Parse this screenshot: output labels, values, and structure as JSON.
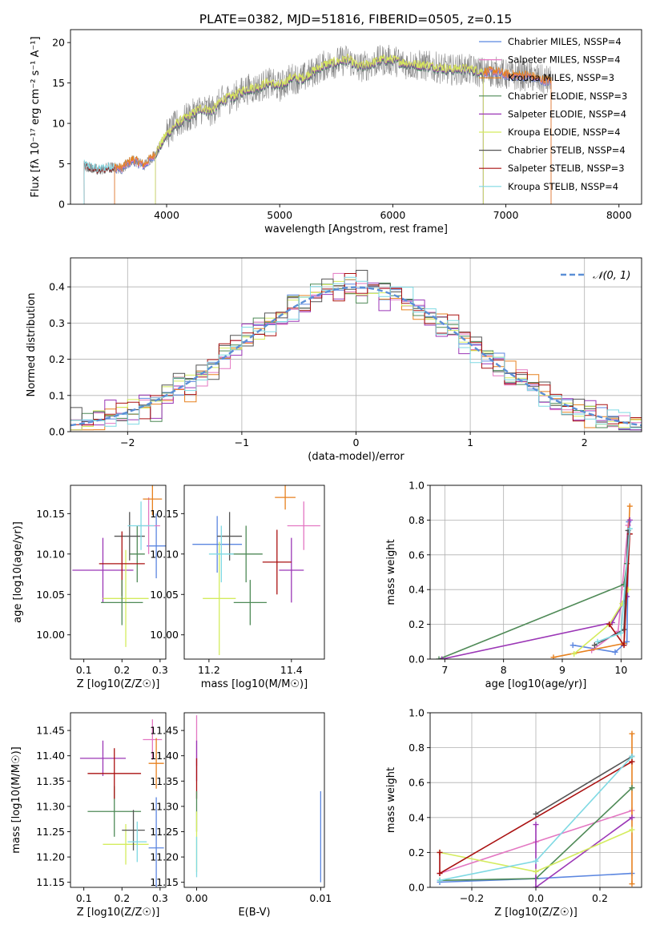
{
  "figure": {
    "title": "PLATE=0382, MJD=51816, FIBERID=0505, z=0.15"
  },
  "series_styles": [
    {
      "name": "Chabrier MILES",
      "nssp": "4",
      "color": "#5b86e0"
    },
    {
      "name": "Salpeter MILES",
      "nssp": "4",
      "color": "#e377c2"
    },
    {
      "name": "Kroupa MILES",
      "nssp": "3",
      "color": "#e7811f"
    },
    {
      "name": "Chabrier ELODIE",
      "nssp": "3",
      "color": "#4f8a57"
    },
    {
      "name": "Salpeter ELODIE",
      "nssp": "4",
      "color": "#9b36b6"
    },
    {
      "name": "Kroupa ELODIE",
      "nssp": "4",
      "color": "#d4ec5e"
    },
    {
      "name": "Chabrier STELIB",
      "nssp": "4",
      "color": "#555555"
    },
    {
      "name": "Salpeter STELIB",
      "nssp": "3",
      "color": "#aa1111"
    },
    {
      "name": "Kroupa STELIB",
      "nssp": "4",
      "color": "#7fd9e3"
    }
  ],
  "chart_data": [
    {
      "id": "spectrum",
      "type": "line",
      "title": "PLATE=0382, MJD=51816, FIBERID=0505, z=0.15",
      "xlabel": "wavelength [Angstrom, rest frame]",
      "ylabel": "Flux [fλ 10⁻¹⁷ erg cm⁻² s⁻¹ A⁻¹]",
      "xlim": [
        3150,
        8200
      ],
      "ylim": [
        0,
        21.6
      ],
      "xticks": [
        4000,
        5000,
        6000,
        7000,
        8000
      ],
      "yticks": [
        0,
        5,
        10,
        15,
        20
      ],
      "legend_loc": "upper right",
      "legend": [
        "Chabrier MILES, NSSP=4",
        "Salpeter MILES, NSSP=4",
        "Kroupa MILES, NSSP=3",
        "Chabrier ELODIE, NSSP=3",
        "Salpeter ELODIE, NSSP=4",
        "Kroupa ELODIE, NSSP=4",
        "Chabrier STELIB, NSSP=4",
        "Salpeter STELIB, NSSP=3",
        "Kroupa STELIB, NSSP=4"
      ],
      "continuum_x": [
        3270,
        3400,
        3500,
        3600,
        3700,
        3800,
        3900,
        4000,
        4100,
        4200,
        4300,
        4400,
        4500,
        4600,
        4700,
        4800,
        4900,
        5000,
        5100,
        5200,
        5300,
        5400,
        5500,
        5600,
        5700,
        5800,
        5900,
        6000,
        6100,
        6200,
        6300,
        6400,
        6500,
        6600,
        6700,
        6800,
        6900,
        7000,
        7100,
        7200,
        7300,
        7400
      ],
      "continuum_y": [
        4.8,
        4.2,
        4.6,
        4.4,
        5.5,
        4.8,
        6.2,
        8.6,
        10.0,
        10.8,
        11.8,
        11.5,
        12.9,
        13.3,
        14.2,
        14.4,
        15.0,
        14.5,
        15.6,
        15.5,
        16.4,
        17.2,
        17.5,
        17.9,
        16.9,
        17.3,
        17.8,
        17.8,
        17.4,
        17.2,
        17.1,
        16.9,
        16.6,
        16.7,
        16.6,
        16.3,
        16.4,
        16.0,
        15.9,
        15.9,
        15.4,
        15.2
      ],
      "noisy_data_xrange": [
        4000,
        7400
      ],
      "model_ranges": [
        {
          "series": "Chabrier MILES",
          "x": [
            3540,
            7400
          ]
        },
        {
          "series": "Salpeter MILES",
          "x": [
            3540,
            7400
          ]
        },
        {
          "series": "Kroupa MILES",
          "x": [
            3540,
            7400
          ]
        },
        {
          "series": "Chabrier ELODIE",
          "x": [
            3900,
            6800
          ]
        },
        {
          "series": "Salpeter ELODIE",
          "x": [
            3900,
            6800
          ]
        },
        {
          "series": "Kroupa ELODIE",
          "x": [
            3900,
            6800
          ]
        },
        {
          "series": "Chabrier STELIB",
          "x": [
            3270,
            7400
          ]
        },
        {
          "series": "Salpeter STELIB",
          "x": [
            3270,
            7400
          ]
        },
        {
          "series": "Kroupa STELIB",
          "x": [
            3270,
            7400
          ]
        }
      ]
    },
    {
      "id": "residuals",
      "type": "step-histogram",
      "xlabel": "(data-model)/error",
      "ylabel": "Normed distribution",
      "xlim": [
        -2.5,
        2.5
      ],
      "ylim": [
        0,
        0.48
      ],
      "xticks": [
        -2,
        -1,
        0,
        1,
        2
      ],
      "yticks": [
        0.0,
        0.1,
        0.2,
        0.3,
        0.4
      ],
      "grid": true,
      "legend_loc": "upper right",
      "reference_curve": {
        "label": "𝒩(0, 1)",
        "mean": 0,
        "sigma": 1,
        "style": "dashed",
        "color": "#5b8fd6"
      },
      "bin_width": 0.1,
      "bin_range": [
        -2.5,
        2.5
      ]
    },
    {
      "id": "age-vs-Z",
      "type": "scatter-errorbar",
      "xlabel": "Z [log10(Z/Z☉)]",
      "ylabel": "age  [log10(age/yr)]",
      "xlim": [
        0.065,
        0.315
      ],
      "ylim": [
        9.97,
        10.185
      ],
      "xticks": [
        0.1,
        0.2,
        0.3
      ],
      "yticks": [
        10.0,
        10.05,
        10.1,
        10.15
      ],
      "points": [
        {
          "series": "Chabrier MILES",
          "x": 0.29,
          "y": 10.11,
          "xerr": 0.025,
          "yerr": 0.04
        },
        {
          "series": "Salpeter MILES",
          "x": 0.27,
          "y": 10.135,
          "xerr": 0.03,
          "yerr": 0.035
        },
        {
          "series": "Kroupa MILES",
          "x": 0.28,
          "y": 10.168,
          "xerr": 0.025,
          "yerr": 0.02
        },
        {
          "series": "Chabrier ELODIE",
          "x": 0.24,
          "y": 10.1,
          "xerr": 0.02,
          "yerr": 0.035
        },
        {
          "series": "Salpeter ELODIE",
          "x": 0.15,
          "y": 10.08,
          "xerr": 0.08,
          "yerr": 0.04
        },
        {
          "series": "Kroupa ELODIE",
          "x": 0.21,
          "y": 10.045,
          "xerr": 0.06,
          "yerr": 0.06
        },
        {
          "series": "Chabrier STELIB",
          "x": 0.22,
          "y": 10.122,
          "xerr": 0.04,
          "yerr": 0.03
        },
        {
          "series": "Salpeter STELIB",
          "x": 0.2,
          "y": 10.088,
          "xerr": 0.06,
          "yerr": 0.04
        },
        {
          "series": "Kroupa STELIB",
          "x": 0.25,
          "y": 10.135,
          "xerr": 0.035,
          "yerr": 0.03
        },
        {
          "series": "Chabrier ELODIE",
          "x": 0.2,
          "y": 10.04,
          "xerr": 0.055,
          "yerr": 0.028
        }
      ]
    },
    {
      "id": "age-vs-mass",
      "type": "scatter-errorbar",
      "xlabel": "mass [log10(M/M☉)]",
      "ylabel": "",
      "xlim": [
        11.14,
        11.48
      ],
      "ylim": [
        9.97,
        10.185
      ],
      "xticks": [
        11.2,
        11.4
      ],
      "yticks": [
        10.0,
        10.05,
        10.1,
        10.15
      ],
      "points": [
        {
          "series": "Chabrier MILES",
          "x": 11.22,
          "y": 10.112,
          "xerr": 0.06,
          "yerr": 0.035
        },
        {
          "series": "Salpeter MILES",
          "x": 11.43,
          "y": 10.135,
          "xerr": 0.04,
          "yerr": 0.03
        },
        {
          "series": "Kroupa MILES",
          "x": 11.385,
          "y": 10.17,
          "xerr": 0.025,
          "yerr": 0.015
        },
        {
          "series": "Chabrier ELODIE",
          "x": 11.29,
          "y": 10.1,
          "xerr": 0.04,
          "yerr": 0.035
        },
        {
          "series": "Salpeter ELODIE",
          "x": 11.4,
          "y": 10.08,
          "xerr": 0.03,
          "yerr": 0.04
        },
        {
          "series": "Kroupa ELODIE",
          "x": 11.225,
          "y": 10.045,
          "xerr": 0.04,
          "yerr": 0.07
        },
        {
          "series": "Chabrier STELIB",
          "x": 11.25,
          "y": 10.122,
          "xerr": 0.03,
          "yerr": 0.03
        },
        {
          "series": "Salpeter STELIB",
          "x": 11.365,
          "y": 10.09,
          "xerr": 0.035,
          "yerr": 0.04
        },
        {
          "series": "Kroupa STELIB",
          "x": 11.23,
          "y": 10.1,
          "xerr": 0.03,
          "yerr": 0.035
        },
        {
          "series": "Chabrier ELODIE",
          "x": 11.3,
          "y": 10.04,
          "xerr": 0.04,
          "yerr": 0.028
        }
      ]
    },
    {
      "id": "massweight-vs-age",
      "type": "line",
      "xlabel": "age  [log10(age/yr)]",
      "ylabel": "mass weight",
      "xlim": [
        6.75,
        10.35
      ],
      "ylim": [
        0,
        1.0
      ],
      "xticks": [
        7,
        8,
        9,
        10
      ],
      "yticks": [
        0.0,
        0.2,
        0.4,
        0.6,
        0.8,
        1.0
      ],
      "grid": true,
      "series": [
        {
          "name": "Chabrier MILES",
          "x": [
            9.18,
            9.9,
            10.1,
            10.13
          ],
          "y": [
            0.08,
            0.04,
            0.1,
            0.79
          ]
        },
        {
          "name": "Salpeter MILES",
          "x": [
            9.5,
            9.95,
            10.12
          ],
          "y": [
            0.05,
            0.16,
            0.77
          ]
        },
        {
          "name": "Kroupa MILES",
          "x": [
            8.85,
            10.05,
            10.15
          ],
          "y": [
            0.01,
            0.09,
            0.88
          ]
        },
        {
          "name": "Chabrier ELODIE",
          "x": [
            6.9,
            10.05,
            10.1
          ],
          "y": [
            0.0,
            0.43,
            0.55
          ]
        },
        {
          "name": "Salpeter ELODIE",
          "x": [
            6.95,
            9.85,
            10.1,
            10.15
          ],
          "y": [
            0.0,
            0.21,
            0.36,
            0.8
          ]
        },
        {
          "name": "Kroupa ELODIE",
          "x": [
            9.2,
            9.8,
            10.02,
            10.12
          ],
          "y": [
            0.03,
            0.2,
            0.32,
            0.4
          ]
        },
        {
          "name": "Chabrier STELIB",
          "x": [
            9.55,
            10.05,
            10.12
          ],
          "y": [
            0.08,
            0.17,
            0.74
          ]
        },
        {
          "name": "Salpeter STELIB",
          "x": [
            9.8,
            10.05,
            10.15
          ],
          "y": [
            0.2,
            0.08,
            0.72
          ]
        },
        {
          "name": "Kroupa STELIB",
          "x": [
            9.6,
            10.0,
            10.15
          ],
          "y": [
            0.1,
            0.15,
            0.75
          ]
        }
      ]
    },
    {
      "id": "mass-vs-Z",
      "type": "scatter-errorbar",
      "xlabel": "Z [log10(Z/Z☉)]",
      "ylabel": "mass [log10(M/M☉)]",
      "xlim": [
        0.065,
        0.315
      ],
      "ylim": [
        11.14,
        11.485
      ],
      "xticks": [
        0.1,
        0.2,
        0.3
      ],
      "yticks": [
        11.15,
        11.2,
        11.25,
        11.3,
        11.35,
        11.4,
        11.45
      ],
      "points": [
        {
          "series": "Chabrier MILES",
          "x": 0.29,
          "y": 11.218,
          "xerr": 0.02,
          "yerr": 0.1
        },
        {
          "series": "Salpeter MILES",
          "x": 0.28,
          "y": 11.432,
          "xerr": 0.025,
          "yerr": 0.04
        },
        {
          "series": "Kroupa MILES",
          "x": 0.29,
          "y": 11.385,
          "xerr": 0.02,
          "yerr": 0.05
        },
        {
          "series": "Chabrier ELODIE",
          "x": 0.18,
          "y": 11.29,
          "xerr": 0.07,
          "yerr": 0.05
        },
        {
          "series": "Salpeter ELODIE",
          "x": 0.15,
          "y": 11.395,
          "xerr": 0.06,
          "yerr": 0.035
        },
        {
          "series": "Kroupa ELODIE",
          "x": 0.21,
          "y": 11.225,
          "xerr": 0.06,
          "yerr": 0.04
        },
        {
          "series": "Chabrier STELIB",
          "x": 0.23,
          "y": 11.253,
          "xerr": 0.03,
          "yerr": 0.04
        },
        {
          "series": "Salpeter STELIB",
          "x": 0.18,
          "y": 11.365,
          "xerr": 0.07,
          "yerr": 0.05
        },
        {
          "series": "Kroupa STELIB",
          "x": 0.24,
          "y": 11.23,
          "xerr": 0.025,
          "yerr": 0.04
        }
      ]
    },
    {
      "id": "mass-vs-EBV",
      "type": "scatter-errorbar",
      "xlabel": "E(B-V)",
      "ylabel": "",
      "xlim": [
        -0.001,
        0.0103
      ],
      "ylim": [
        11.14,
        11.485
      ],
      "xticks": [
        0.0,
        0.01
      ],
      "xtick_labels": [
        "0.00",
        "0.01"
      ],
      "yticks": [
        11.15,
        11.2,
        11.25,
        11.3,
        11.35,
        11.4,
        11.45
      ],
      "points": [
        {
          "series": "Salpeter MILES",
          "x": 0.0,
          "y": 11.43,
          "xerr": 0.0,
          "yerr": 0.05
        },
        {
          "series": "Salpeter ELODIE",
          "x": 0.0,
          "y": 11.39,
          "xerr": 0.0,
          "yerr": 0.04
        },
        {
          "series": "Salpeter STELIB",
          "x": 0.0,
          "y": 11.355,
          "xerr": 0.0,
          "yerr": 0.04
        },
        {
          "series": "Chabrier ELODIE",
          "x": 0.0,
          "y": 11.29,
          "xerr": 0.0,
          "yerr": 0.04
        },
        {
          "series": "Kroupa ELODIE",
          "x": 0.0,
          "y": 11.23,
          "xerr": 0.0,
          "yerr": 0.06
        },
        {
          "series": "Kroupa STELIB",
          "x": 0.0,
          "y": 11.2,
          "xerr": 0.0,
          "yerr": 0.04
        },
        {
          "series": "Chabrier MILES",
          "x": 0.01,
          "y": 11.24,
          "xerr": 0.0,
          "yerr": 0.09
        }
      ]
    },
    {
      "id": "massweight-vs-Z",
      "type": "line",
      "xlabel": "Z [log10(Z/Z☉)]",
      "ylabel": "mass weight",
      "xlim": [
        -0.33,
        0.33
      ],
      "ylim": [
        0,
        1.0
      ],
      "xticks": [
        -0.2,
        0.0,
        0.2
      ],
      "yticks": [
        0.0,
        0.2,
        0.4,
        0.6,
        0.8,
        1.0
      ],
      "grid": true,
      "series": [
        {
          "name": "Chabrier MILES",
          "x": [
            -0.3,
            0.0,
            0.3
          ],
          "y": [
            0.03,
            0.05,
            0.08
          ]
        },
        {
          "name": "Salpeter MILES",
          "x": [
            -0.3,
            0.0,
            0.3
          ],
          "y": [
            0.08,
            0.26,
            0.44
          ]
        },
        {
          "name": "Kroupa MILES",
          "x": [
            0.3,
            0.3
          ],
          "y": [
            0.02,
            0.88
          ]
        },
        {
          "name": "Chabrier ELODIE",
          "x": [
            -0.3,
            0.0,
            0.3
          ],
          "y": [
            0.04,
            0.05,
            0.57
          ]
        },
        {
          "name": "Salpeter ELODIE",
          "x": [
            0.0,
            0.0,
            0.3
          ],
          "y": [
            0.36,
            0.0,
            0.4
          ]
        },
        {
          "name": "Kroupa ELODIE",
          "x": [
            -0.3,
            0.0,
            0.3
          ],
          "y": [
            0.2,
            0.09,
            0.33
          ]
        },
        {
          "name": "Chabrier STELIB",
          "x": [
            0.0,
            0.3
          ],
          "y": [
            0.42,
            0.75
          ]
        },
        {
          "name": "Salpeter STELIB",
          "x": [
            -0.3,
            -0.3,
            0.3
          ],
          "y": [
            0.2,
            0.08,
            0.72
          ]
        },
        {
          "name": "Kroupa STELIB",
          "x": [
            -0.3,
            0.0,
            0.3
          ],
          "y": [
            0.04,
            0.15,
            0.75
          ]
        }
      ]
    }
  ]
}
